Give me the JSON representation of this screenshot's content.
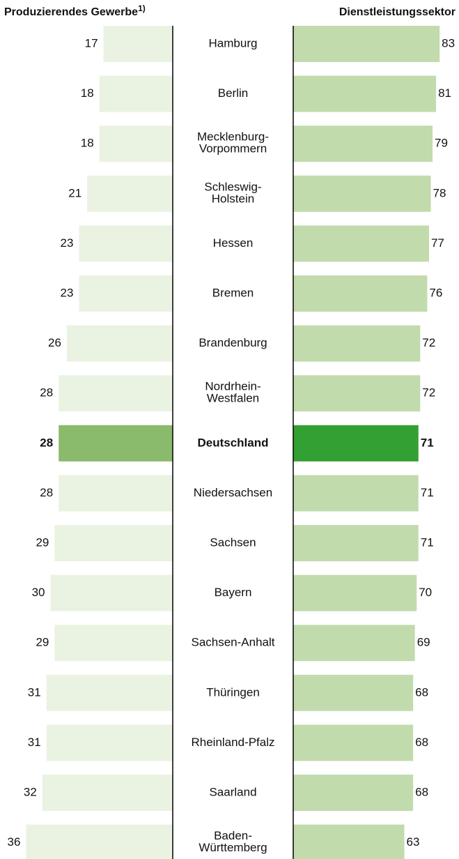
{
  "chart_data": {
    "type": "butterfly",
    "categories": [
      "Hamburg",
      "Berlin",
      "Mecklenburg-\nVorpommern",
      "Schleswig-\nHolstein",
      "Hessen",
      "Bremen",
      "Brandenburg",
      "Nordrhein-\nWestfalen",
      "Deutschland",
      "Niedersachsen",
      "Sachsen",
      "Bayern",
      "Sachsen-Anhalt",
      "Thüringen",
      "Rheinland-Pfalz",
      "Saarland",
      "Baden-\nWürttemberg"
    ],
    "highlight": "Deutschland",
    "series": [
      {
        "name": "Produzierendes Gewerbe",
        "footnote_marker": "1)",
        "side": "left",
        "color": "#eaf3e2",
        "highlight_color": "#8aba6b",
        "xlim": [
          0,
          42.4
        ],
        "values": [
          17,
          18,
          18,
          21,
          23,
          23,
          26,
          28,
          28,
          28,
          29,
          30,
          29,
          31,
          31,
          32,
          36
        ]
      },
      {
        "name": "Dienstleistungssektor",
        "side": "right",
        "color": "#c2dbad",
        "highlight_color": "#33a033",
        "xlim": [
          0,
          94
        ],
        "values": [
          83,
          81,
          79,
          78,
          77,
          76,
          72,
          72,
          71,
          71,
          71,
          70,
          69,
          68,
          68,
          68,
          63
        ]
      }
    ]
  }
}
